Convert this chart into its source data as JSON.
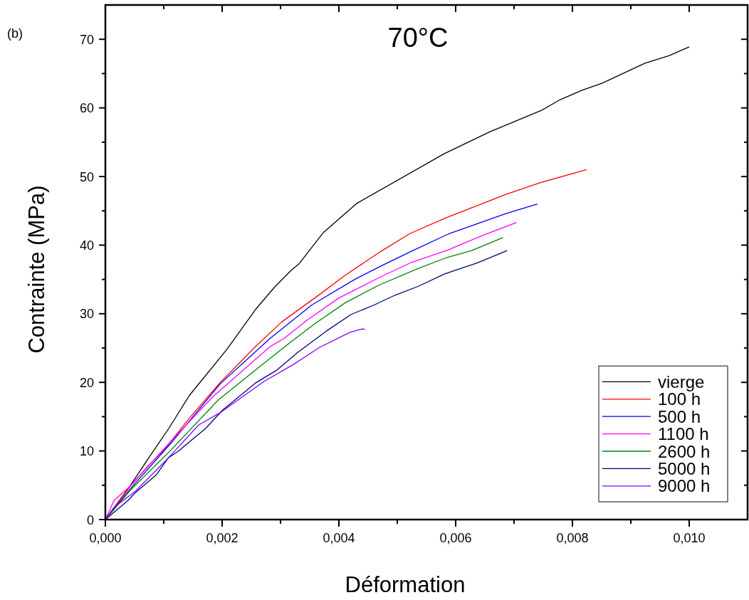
{
  "chart_data": {
    "type": "line",
    "title": "70°C",
    "xlabel": "Déformation",
    "ylabel": "Contrainte (MPa)",
    "annotations": [
      "(b)"
    ],
    "xlim": [
      0,
      0.011
    ],
    "ylim": [
      0,
      75
    ],
    "xticks": [
      {
        "value": 0,
        "label": "0,000"
      },
      {
        "value": 0.001,
        "label": null
      },
      {
        "value": 0.002,
        "label": "0,002"
      },
      {
        "value": 0.003,
        "label": null
      },
      {
        "value": 0.004,
        "label": "0,004"
      },
      {
        "value": 0.005,
        "label": null
      },
      {
        "value": 0.006,
        "label": "0,006"
      },
      {
        "value": 0.007,
        "label": null
      },
      {
        "value": 0.008,
        "label": "0,008"
      },
      {
        "value": 0.009,
        "label": null
      },
      {
        "value": 0.01,
        "label": "0,010"
      }
    ],
    "yticks": [
      0,
      {
        "value": 5,
        "label": null
      },
      10,
      {
        "value": 15,
        "label": null
      },
      20,
      {
        "value": 25,
        "label": null
      },
      30,
      {
        "value": 35,
        "label": null
      },
      40,
      {
        "value": 45,
        "label": null
      },
      50,
      {
        "value": 55,
        "label": null
      },
      60,
      {
        "value": 65,
        "label": null
      },
      70
    ],
    "grid": false,
    "legend": "bottom right",
    "marker": "none",
    "line_style": "solid",
    "series": [
      {
        "name": "vierge",
        "color": "#000000",
        "x": [
          0,
          0.00043,
          0.00075,
          0.00108,
          0.00144,
          0.00209,
          0.00257,
          0.0029,
          0.00318,
          0.00332,
          0.00373,
          0.00431,
          0.0058,
          0.00658,
          0.00746,
          0.00779,
          0.00817,
          0.00851,
          0.00924,
          0.00965,
          0.01
        ],
        "values": [
          0,
          5,
          9.1,
          13.2,
          18.1,
          24.9,
          30.6,
          33.9,
          36.3,
          37.3,
          41.8,
          46.1,
          53.3,
          56.5,
          59.6,
          61.2,
          62.6,
          63.6,
          66.5,
          67.6,
          68.9
        ]
      },
      {
        "name": "100 h",
        "color": "#ff0000",
        "x": [
          0,
          0.00043,
          0.00071,
          0.00103,
          0.00144,
          0.00197,
          0.00257,
          0.00302,
          0.0037,
          0.00409,
          0.00472,
          0.00522,
          0.00581,
          0.00686,
          0.00745,
          0.00824
        ],
        "values": [
          0,
          4.9,
          7.6,
          10.4,
          14.8,
          20,
          25.2,
          28.8,
          33,
          35.5,
          39.1,
          41.7,
          43.9,
          47.4,
          49.1,
          51
        ]
      },
      {
        "name": "500 h",
        "color": "#0000ff",
        "x": [
          0,
          0.00043,
          0.00112,
          0.00197,
          0.00282,
          0.00354,
          0.00427,
          0.00473,
          0.00524,
          0.00587,
          0.00686,
          0.0074
        ],
        "values": [
          0,
          4.5,
          11.1,
          19.8,
          26.4,
          31.3,
          35,
          37,
          39.1,
          41.6,
          44.6,
          46
        ]
      },
      {
        "name": "1100 h",
        "color": "#ff00ff",
        "x": [
          0,
          0.00015,
          0.00043,
          0.00112,
          0.00184,
          0.00282,
          0.00306,
          0.00346,
          0.004,
          0.00472,
          0.00522,
          0.00587,
          0.00643,
          0.00704
        ],
        "values": [
          0,
          2.8,
          4.9,
          11.4,
          17.9,
          25.2,
          26.4,
          29.1,
          32.3,
          35.4,
          37.4,
          39.3,
          41.3,
          43.3
        ]
      },
      {
        "name": "2600 h",
        "color": "#008000",
        "x": [
          0,
          0.00043,
          0.00112,
          0.00193,
          0.0026,
          0.00318,
          0.00358,
          0.00411,
          0.00467,
          0.00533,
          0.00585,
          0.00627,
          0.00681
        ],
        "values": [
          0,
          4.3,
          10.1,
          17.4,
          22,
          25.9,
          28.5,
          31.6,
          34.1,
          36.5,
          38.2,
          39.2,
          41.1
        ]
      },
      {
        "name": "5000 h",
        "color": "#000080",
        "x": [
          0,
          0.00039,
          0.00051,
          0.00087,
          0.00108,
          0.00124,
          0.00172,
          0.002,
          0.00257,
          0.00294,
          0.0033,
          0.00379,
          0.00421,
          0.00461,
          0.00496,
          0.00536,
          0.00581,
          0.00637,
          0.00688
        ],
        "values": [
          0,
          2.8,
          3.9,
          6.5,
          9,
          9.9,
          13.3,
          15.9,
          19.9,
          21.8,
          24.4,
          27.5,
          29.9,
          31.3,
          32.7,
          34,
          35.8,
          37.4,
          39.2
        ]
      },
      {
        "name": "9000 h",
        "color": "#7f00ff",
        "x": [
          0,
          0.00015,
          0.00051,
          0.00108,
          0.0016,
          0.00197,
          0.00233,
          0.00273,
          0.00322,
          0.00367,
          0.00419,
          0.0044,
          0.00445
        ],
        "values": [
          0,
          1.8,
          4.1,
          9,
          13.8,
          15.6,
          17.8,
          20.2,
          22.6,
          25.1,
          27.3,
          27.8,
          27.7
        ]
      }
    ]
  }
}
